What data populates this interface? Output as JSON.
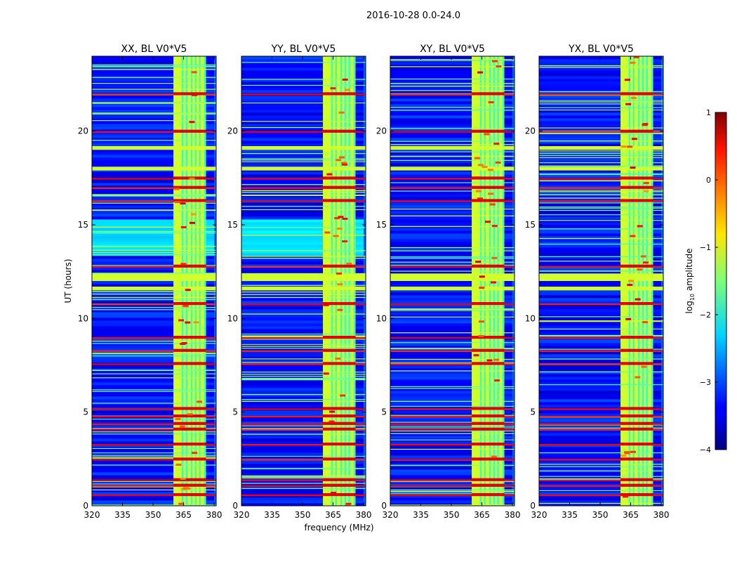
{
  "figure": {
    "suptitle": "2016-10-28 0.0-24.0"
  },
  "chart_data": {
    "type": "heatmap",
    "panels": [
      {
        "title": "XX, BL V0*V5",
        "pol": "XX"
      },
      {
        "title": "YY, BL V0*V5",
        "pol": "YY"
      },
      {
        "title": "XY, BL V0*V5",
        "pol": "XY"
      },
      {
        "title": "YX, BL V0*V5",
        "pol": "YX"
      }
    ],
    "xlabel": "frequency (MHz)",
    "ylabel": "UT (hours)",
    "xlim": [
      320,
      381
    ],
    "ylim": [
      0,
      24
    ],
    "xticks": [
      320,
      335,
      350,
      365,
      380
    ],
    "yticks": [
      0,
      5,
      10,
      15,
      20
    ],
    "xtick_labels": [
      "320",
      "335",
      "350",
      "365",
      "380"
    ],
    "ytick_labels": [
      "0",
      "5",
      "10",
      "15",
      "20"
    ],
    "colorbar": {
      "label_prefix": "log",
      "label_sub": "10",
      "label_suffix": " amplitude",
      "range": [
        -4,
        1
      ],
      "ticks": [
        1,
        0,
        -1,
        -2,
        -3,
        -4
      ],
      "tick_labels": [
        "1",
        "0",
        "−1",
        "−2",
        "−3",
        "−4"
      ],
      "colormap": "jet"
    },
    "rfi_band_MHz": [
      360,
      376
    ],
    "bright_rows_UT": [
      0.6,
      1.1,
      1.4,
      2.5,
      3.3,
      4.1,
      4.4,
      4.8,
      5.2,
      7.6,
      8.3,
      9.0,
      10.8,
      12.8,
      16.3,
      17.0,
      17.5,
      20.0,
      22.0
    ],
    "flagged_rows_UT": [
      [
        12.0,
        12.4
      ],
      [
        17.9,
        18.1
      ],
      [
        19.0,
        19.2
      ],
      [
        11.5,
        11.7
      ]
    ]
  }
}
